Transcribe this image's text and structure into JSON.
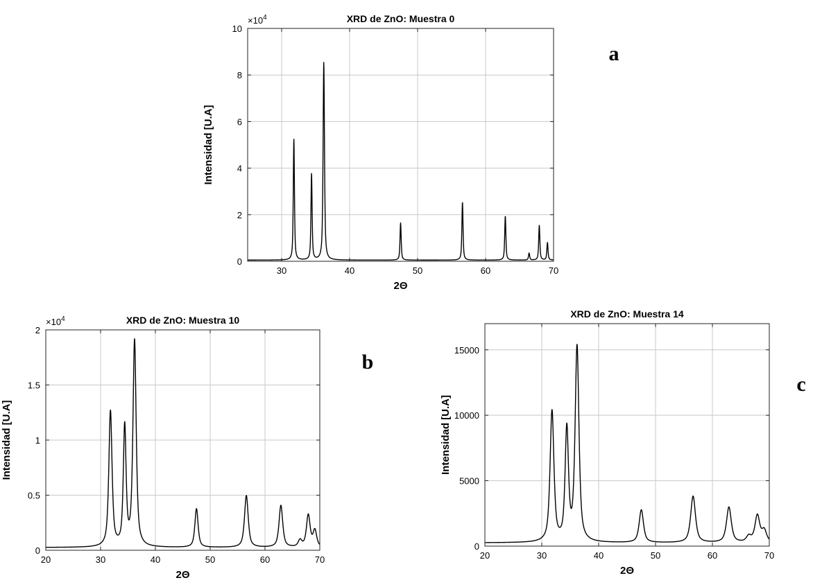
{
  "chart_data": [
    {
      "type": "line",
      "panel_letter": "a",
      "title": "XRD de ZnO: Muestra 0",
      "xlabel": "2Θ",
      "ylabel": "Intensidad [U.A]",
      "exponent_label": "×10",
      "exponent_power": "4",
      "xlim": [
        25,
        70
      ],
      "ylim": [
        0,
        10
      ],
      "xticks": [
        30,
        40,
        50,
        60,
        70
      ],
      "yticks": [
        0,
        2,
        4,
        6,
        8,
        10
      ],
      "grid": true,
      "color": "#000000",
      "baseline": 0.05,
      "peaks": [
        {
          "x": 31.8,
          "height": 5.2,
          "width": 0.1
        },
        {
          "x": 34.4,
          "height": 3.7,
          "width": 0.1
        },
        {
          "x": 36.2,
          "height": 8.5,
          "width": 0.12
        },
        {
          "x": 47.5,
          "height": 1.6,
          "width": 0.1
        },
        {
          "x": 56.6,
          "height": 2.5,
          "width": 0.1
        },
        {
          "x": 62.9,
          "height": 1.9,
          "width": 0.1
        },
        {
          "x": 66.4,
          "height": 0.3,
          "width": 0.1
        },
        {
          "x": 67.9,
          "height": 1.5,
          "width": 0.1
        },
        {
          "x": 69.1,
          "height": 0.75,
          "width": 0.1
        }
      ]
    },
    {
      "type": "line",
      "panel_letter": "b",
      "title": "XRD de ZnO: Muestra 10",
      "xlabel": "2Θ",
      "ylabel": "Intensidad [U.A]",
      "exponent_label": "×10",
      "exponent_power": "4",
      "xlim": [
        20,
        70
      ],
      "ylim": [
        0,
        2
      ],
      "xticks": [
        20,
        30,
        40,
        50,
        60,
        70
      ],
      "yticks": [
        0,
        0.5,
        1,
        1.5,
        2
      ],
      "ytick_labels": [
        "0",
        "0.5",
        "1",
        "1.5",
        "2"
      ],
      "grid": true,
      "color": "#000000",
      "baseline": 0.025,
      "peaks": [
        {
          "x": 31.8,
          "height": 1.23,
          "width": 0.35
        },
        {
          "x": 34.4,
          "height": 1.08,
          "width": 0.3
        },
        {
          "x": 36.2,
          "height": 1.87,
          "width": 0.35
        },
        {
          "x": 47.5,
          "height": 0.35,
          "width": 0.35
        },
        {
          "x": 56.6,
          "height": 0.47,
          "width": 0.4
        },
        {
          "x": 62.9,
          "height": 0.38,
          "width": 0.4
        },
        {
          "x": 66.4,
          "height": 0.06,
          "width": 0.4
        },
        {
          "x": 67.9,
          "height": 0.29,
          "width": 0.4
        },
        {
          "x": 69.1,
          "height": 0.15,
          "width": 0.4
        }
      ]
    },
    {
      "type": "line",
      "panel_letter": "c",
      "title": "XRD de ZnO: Muestra 14",
      "xlabel": "2Θ",
      "ylabel": "Intensidad [U.A]",
      "xlim": [
        20,
        70
      ],
      "ylim": [
        0,
        17000
      ],
      "xticks": [
        20,
        30,
        40,
        50,
        60,
        70
      ],
      "yticks": [
        0,
        5000,
        10000,
        15000
      ],
      "grid": true,
      "color": "#000000",
      "baseline": 250,
      "peaks": [
        {
          "x": 31.8,
          "height": 10000,
          "width": 0.4
        },
        {
          "x": 34.4,
          "height": 8500,
          "width": 0.35
        },
        {
          "x": 36.2,
          "height": 14900,
          "width": 0.4
        },
        {
          "x": 47.5,
          "height": 2500,
          "width": 0.45
        },
        {
          "x": 56.6,
          "height": 3550,
          "width": 0.5
        },
        {
          "x": 62.9,
          "height": 2700,
          "width": 0.5
        },
        {
          "x": 66.4,
          "height": 450,
          "width": 0.5
        },
        {
          "x": 67.9,
          "height": 2050,
          "width": 0.5
        },
        {
          "x": 69.1,
          "height": 900,
          "width": 0.5
        }
      ]
    }
  ]
}
